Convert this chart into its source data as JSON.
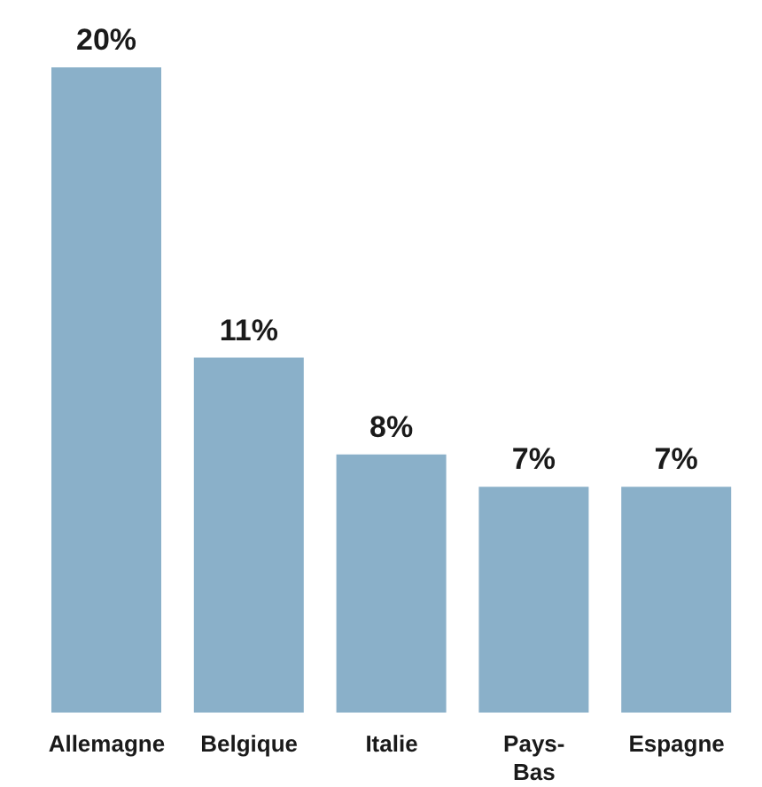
{
  "chart_data": {
    "type": "bar",
    "categories": [
      "Allemagne",
      "Belgique",
      "Italie",
      "Pays-Bas",
      "Espagne"
    ],
    "values": [
      20,
      11,
      8,
      7,
      7
    ],
    "value_labels": [
      "20%",
      "11%",
      "8%",
      "7%",
      "7%"
    ],
    "color": "#8ab0c9"
  }
}
